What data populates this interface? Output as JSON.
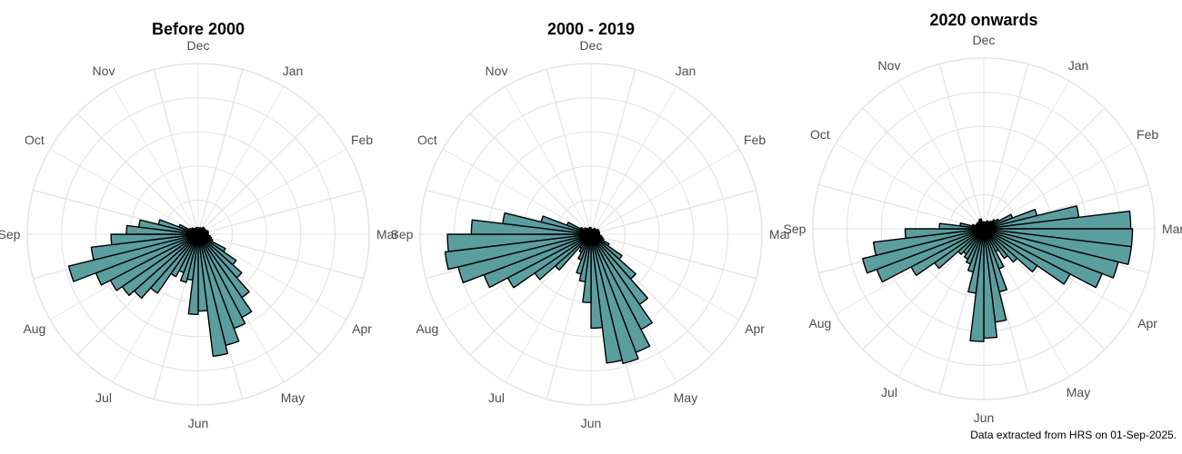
{
  "chart_data": [
    {
      "type": "rose",
      "title": "Before 2000",
      "months": [
        "Jan",
        "Feb",
        "Mar",
        "Apr",
        "May",
        "Jun",
        "Jul",
        "Aug",
        "Sep",
        "Oct",
        "Nov",
        "Dec"
      ],
      "radial_grid_rings": 5,
      "values": [
        0.03,
        0.03,
        0.04,
        0.04,
        0.04,
        0.05,
        0.05,
        0.04,
        0.05,
        0.05,
        0.06,
        0.06,
        0.05,
        0.06,
        0.07,
        0.08,
        0.09,
        0.18,
        0.27,
        0.34,
        0.45,
        0.55,
        0.59,
        0.67,
        0.72,
        0.45,
        0.47,
        0.27,
        0.29,
        0.24,
        0.28,
        0.42,
        0.5,
        0.54,
        0.58,
        0.64,
        0.78,
        0.63,
        0.51,
        0.42,
        0.35,
        0.24,
        0.12,
        0.06,
        0.05,
        0.05,
        0.04,
        0.04,
        0.03,
        0.04,
        0.04,
        0.04
      ]
    },
    {
      "type": "rose",
      "title": "2000 - 2019",
      "months": [
        "Jan",
        "Feb",
        "Mar",
        "Apr",
        "May",
        "Jun",
        "Jul",
        "Aug",
        "Sep",
        "Oct",
        "Nov",
        "Dec"
      ],
      "radial_grid_rings": 5,
      "values": [
        0.03,
        0.03,
        0.03,
        0.03,
        0.04,
        0.04,
        0.04,
        0.04,
        0.05,
        0.05,
        0.05,
        0.05,
        0.05,
        0.05,
        0.06,
        0.07,
        0.08,
        0.12,
        0.22,
        0.35,
        0.5,
        0.63,
        0.74,
        0.78,
        0.76,
        0.55,
        0.4,
        0.28,
        0.24,
        0.16,
        0.12,
        0.1,
        0.28,
        0.4,
        0.55,
        0.67,
        0.8,
        0.86,
        0.84,
        0.7,
        0.52,
        0.3,
        0.15,
        0.07,
        0.05,
        0.05,
        0.04,
        0.04,
        0.03,
        0.03,
        0.04,
        0.04
      ]
    },
    {
      "type": "rose",
      "title": "2020 onwards",
      "months": [
        "Jan",
        "Feb",
        "Mar",
        "Apr",
        "May",
        "Jun",
        "Jul",
        "Aug",
        "Sep",
        "Oct",
        "Nov",
        "Dec"
      ],
      "radial_grid_rings": 5,
      "values": [
        0.04,
        0.04,
        0.04,
        0.05,
        0.05,
        0.05,
        0.06,
        0.08,
        0.1,
        0.18,
        0.32,
        0.56,
        0.86,
        0.87,
        0.87,
        0.81,
        0.74,
        0.57,
        0.38,
        0.26,
        0.21,
        0.15,
        0.25,
        0.38,
        0.55,
        0.64,
        0.66,
        0.38,
        0.26,
        0.22,
        0.2,
        0.18,
        0.2,
        0.35,
        0.48,
        0.67,
        0.73,
        0.65,
        0.46,
        0.26,
        0.14,
        0.07,
        0.05,
        0.05,
        0.05,
        0.05,
        0.05,
        0.05,
        0.06,
        0.06,
        0.04,
        0.04
      ]
    }
  ],
  "style": {
    "bar_fill": "#5b9ea0",
    "bar_stroke": "#000000",
    "grid_color": "#e5e5e5",
    "background": "#ffffff"
  },
  "caption": "Data extracted from HRS on 01-Sep-2025."
}
